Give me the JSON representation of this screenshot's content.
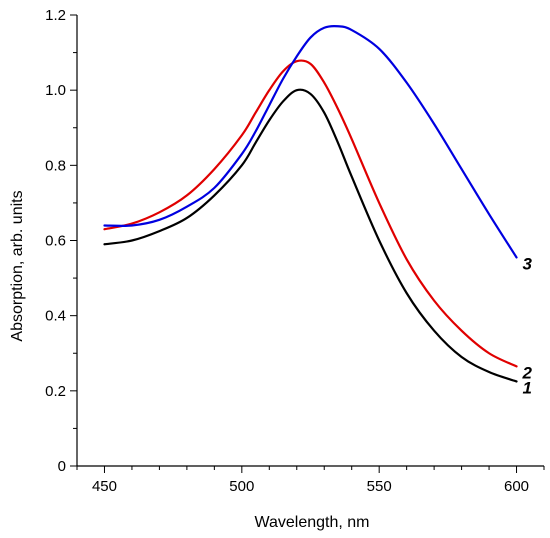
{
  "chart_data": {
    "type": "line",
    "title": "",
    "xlabel": "Wavelength, nm",
    "ylabel": "Absorption, arb. units",
    "xlim": [
      440,
      610
    ],
    "ylim": [
      0,
      1.2
    ],
    "x_ticks": [
      "450",
      "500",
      "550",
      "600"
    ],
    "y_ticks": [
      "0",
      "0.2",
      "0.4",
      "0.6",
      "0.8",
      "1.0",
      "1.2"
    ],
    "grid": false,
    "legend": "none",
    "series": [
      {
        "name": "1",
        "color": "#000000",
        "x": [
          450,
          460,
          470,
          480,
          490,
          500,
          505,
          510,
          515,
          520,
          525,
          530,
          535,
          540,
          550,
          560,
          570,
          580,
          590,
          600
        ],
        "y": [
          0.59,
          0.6,
          0.625,
          0.66,
          0.72,
          0.8,
          0.86,
          0.92,
          0.97,
          1.0,
          0.99,
          0.94,
          0.86,
          0.77,
          0.6,
          0.46,
          0.36,
          0.29,
          0.25,
          0.225
        ]
      },
      {
        "name": "2",
        "color": "#e00000",
        "x": [
          450,
          460,
          470,
          480,
          490,
          500,
          505,
          510,
          515,
          520,
          525,
          530,
          535,
          540,
          550,
          560,
          570,
          580,
          590,
          600
        ],
        "y": [
          0.63,
          0.645,
          0.675,
          0.72,
          0.79,
          0.88,
          0.94,
          1.0,
          1.05,
          1.077,
          1.07,
          1.02,
          0.95,
          0.87,
          0.7,
          0.55,
          0.44,
          0.36,
          0.3,
          0.265
        ]
      },
      {
        "name": "3",
        "color": "#0000e0",
        "x": [
          450,
          460,
          470,
          480,
          490,
          500,
          505,
          510,
          515,
          520,
          525,
          530,
          535,
          540,
          550,
          560,
          570,
          580,
          590,
          600
        ],
        "y": [
          0.64,
          0.64,
          0.655,
          0.69,
          0.74,
          0.83,
          0.89,
          0.96,
          1.03,
          1.09,
          1.14,
          1.166,
          1.17,
          1.16,
          1.11,
          1.02,
          0.91,
          0.79,
          0.67,
          0.555
        ]
      }
    ]
  }
}
